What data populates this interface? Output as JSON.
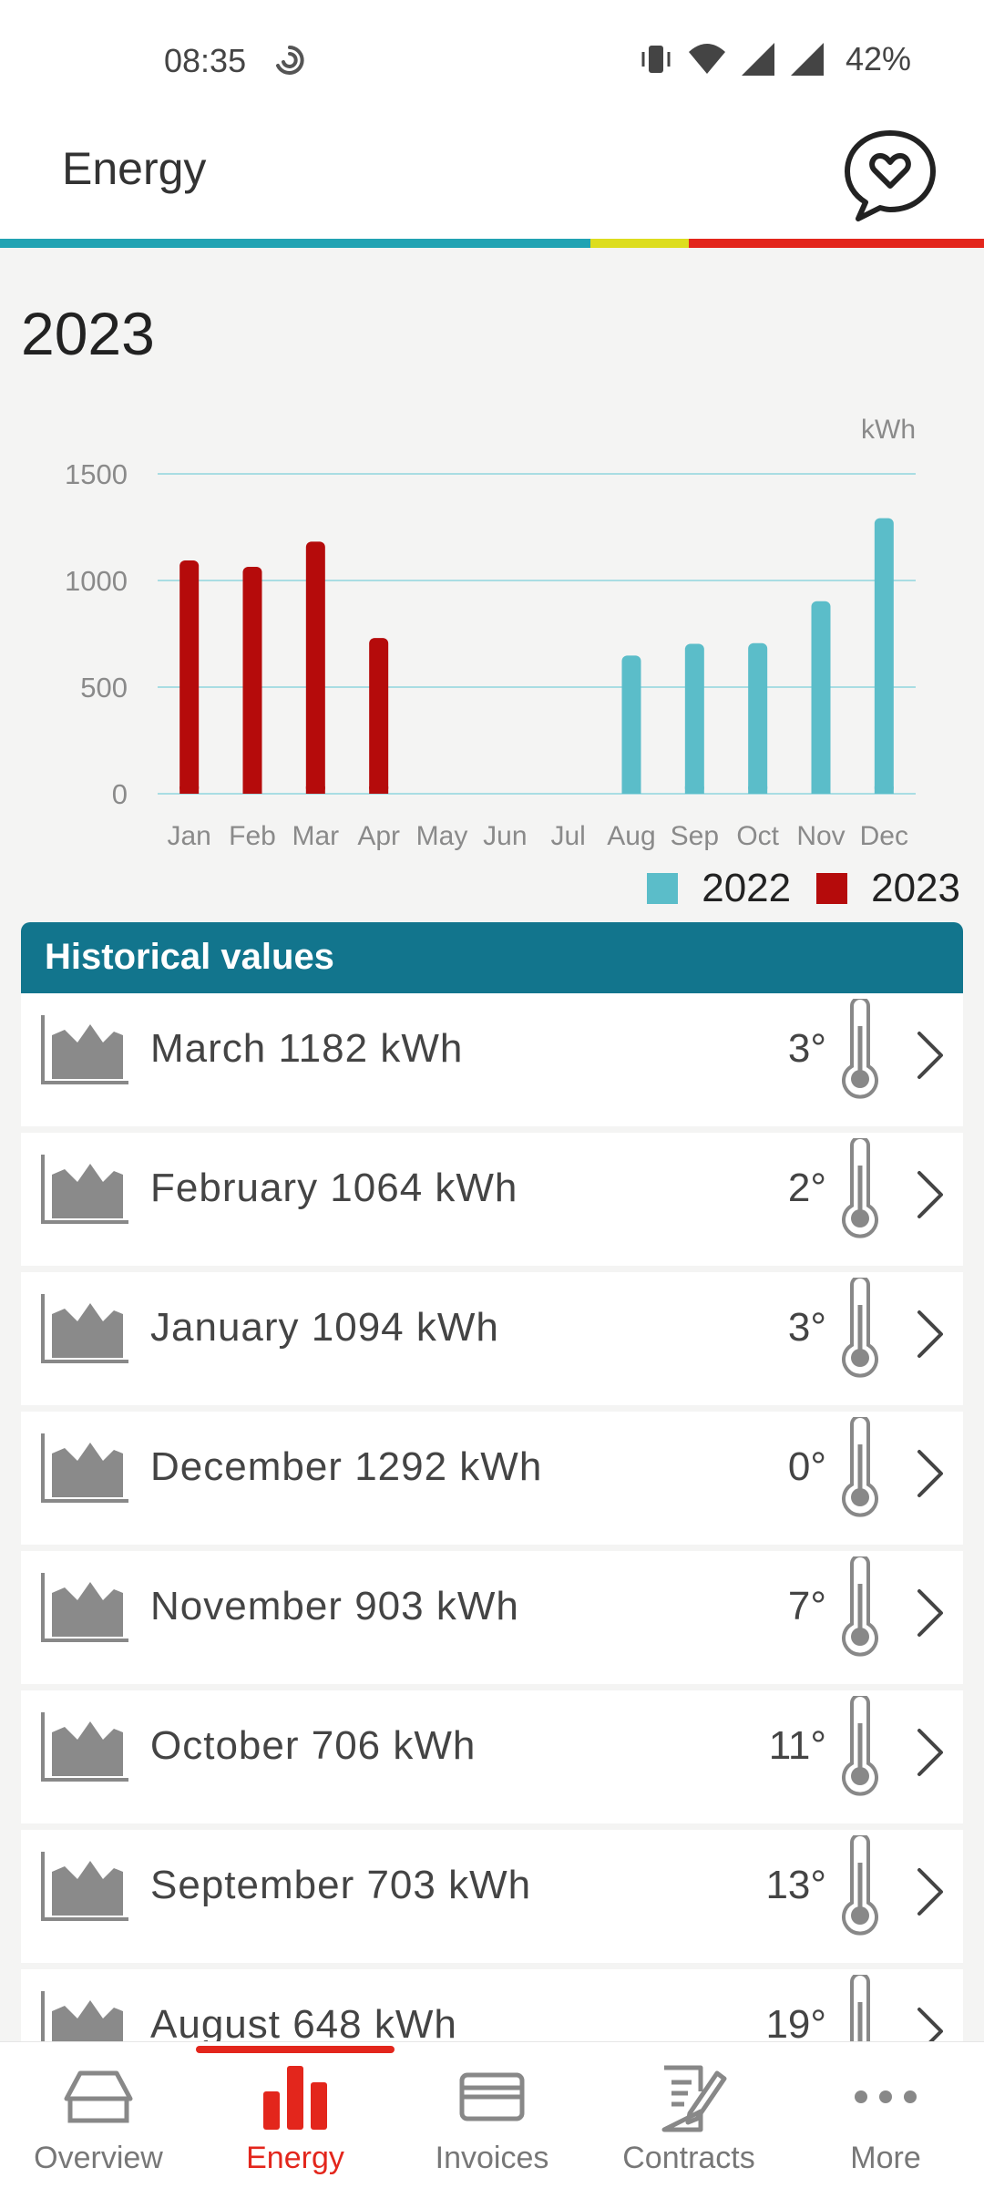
{
  "status_bar": {
    "time": "08:35",
    "battery": "42%"
  },
  "header": {
    "title": "Energy"
  },
  "year": "2023",
  "chart_data": {
    "type": "bar",
    "unit_label": "kWh",
    "categories": [
      "Jan",
      "Feb",
      "Mar",
      "Apr",
      "May",
      "Jun",
      "Jul",
      "Aug",
      "Sep",
      "Oct",
      "Nov",
      "Dec"
    ],
    "series": [
      {
        "name": "2022",
        "color": "#5bbdc9",
        "values": [
          null,
          null,
          null,
          null,
          null,
          null,
          null,
          648,
          703,
          706,
          903,
          1292
        ]
      },
      {
        "name": "2023",
        "color": "#b50b0b",
        "values": [
          1094,
          1064,
          1182,
          730,
          null,
          null,
          null,
          null,
          null,
          null,
          null,
          null
        ]
      }
    ],
    "yticks": [
      0,
      500,
      1000,
      1500
    ],
    "ylim": [
      0,
      1500
    ],
    "grid": true,
    "legend_position": "bottom-right"
  },
  "history": {
    "title": "Historical values",
    "rows": [
      {
        "label": "March 1182 kWh",
        "temp": "3°"
      },
      {
        "label": "February 1064 kWh",
        "temp": "2°"
      },
      {
        "label": "January 1094 kWh",
        "temp": "3°"
      },
      {
        "label": "December 1292 kWh",
        "temp": "0°"
      },
      {
        "label": "November 903 kWh",
        "temp": "7°"
      },
      {
        "label": "October 706 kWh",
        "temp": "11°"
      },
      {
        "label": "September 703 kWh",
        "temp": "13°"
      },
      {
        "label": "August 648 kWh",
        "temp": "19°"
      }
    ]
  },
  "nav": {
    "items": [
      {
        "label": "Overview",
        "icon": "overview-icon"
      },
      {
        "label": "Energy",
        "icon": "energy-icon"
      },
      {
        "label": "Invoices",
        "icon": "invoices-icon"
      },
      {
        "label": "Contracts",
        "icon": "contracts-icon"
      },
      {
        "label": "More",
        "icon": "more-icon"
      }
    ],
    "active_index": 1
  },
  "colors": {
    "accent_red": "#e3261c",
    "teal": "#21a3b3",
    "header_teal": "#12758d"
  }
}
